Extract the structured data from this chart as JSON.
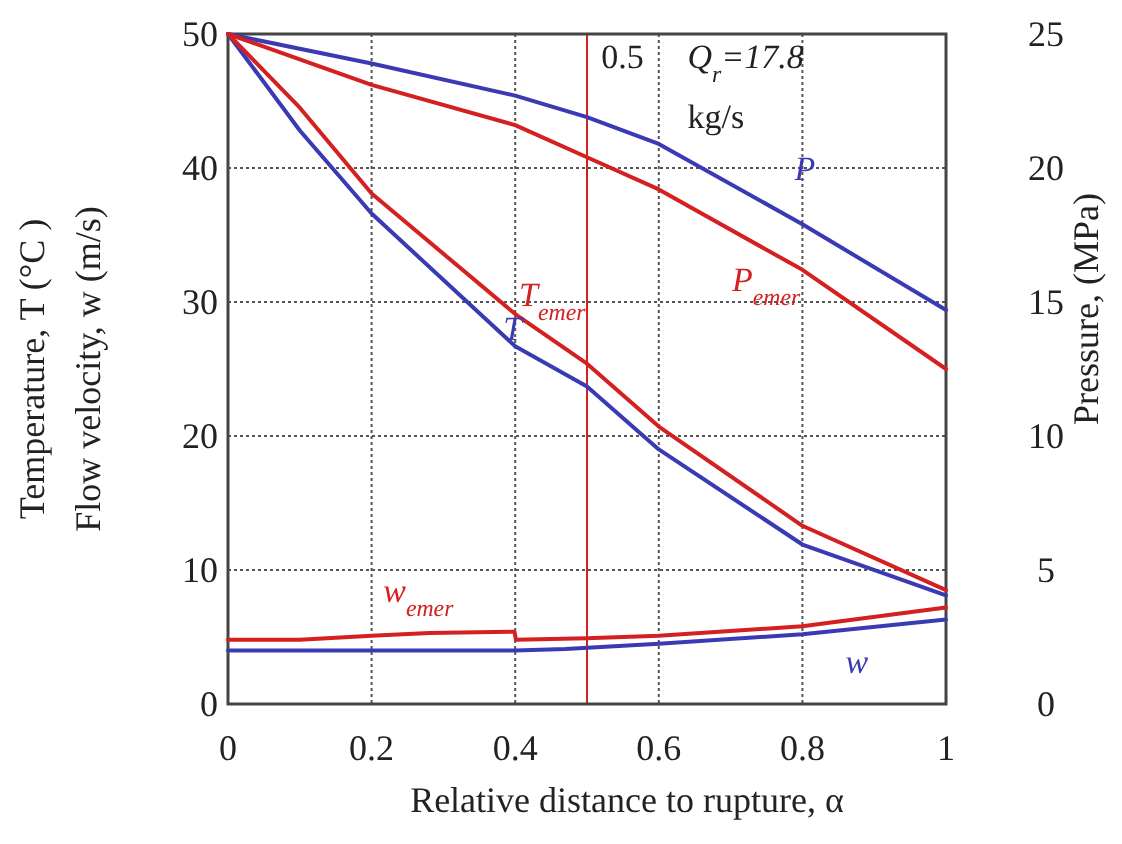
{
  "chart_data": {
    "type": "line",
    "xlabel": "Relative distance to rupture, α",
    "ylabel": "Temperature, T (°C )\nFlow velocity, w (m/s)",
    "y2label": "Pressure, (MPa)",
    "xlim": [
      0,
      1
    ],
    "xticks": [
      0,
      0.2,
      0.4,
      0.6,
      0.8,
      1
    ],
    "ylim": [
      0,
      50
    ],
    "yticks": [
      0,
      10,
      20,
      30,
      40,
      50
    ],
    "y2lim": [
      0,
      25
    ],
    "y2ticks": [
      0,
      5,
      10,
      15,
      20,
      25
    ],
    "grid": true,
    "line_style": "solid",
    "marker": "none",
    "series": [
      {
        "name": "P",
        "color": "#3a3ab4",
        "axis": "y2",
        "x": [
          0,
          0.2,
          0.4,
          0.5,
          0.6,
          0.8,
          1
        ],
        "values": [
          25,
          23.9,
          22.7,
          21.9,
          20.9,
          17.9,
          14.7
        ]
      },
      {
        "name": "P$_{emer}$",
        "color": "#d42020",
        "axis": "y2",
        "x": [
          0,
          0.2,
          0.4,
          0.5,
          0.6,
          0.8,
          1
        ],
        "values": [
          25,
          23.1,
          21.6,
          20.4,
          19.2,
          16.2,
          12.5
        ]
      },
      {
        "name": "T",
        "color": "#3a3ab4",
        "x": [
          0,
          0.1,
          0.2,
          0.4,
          0.5,
          0.6,
          0.8,
          1
        ],
        "values": [
          50,
          42.8,
          36.6,
          26.7,
          23.7,
          19,
          11.9,
          8.1
        ]
      },
      {
        "name": "T$_{emer}$",
        "color": "#d42020",
        "x": [
          0,
          0.1,
          0.2,
          0.4,
          0.5,
          0.6,
          0.8,
          1
        ],
        "values": [
          50,
          44.5,
          38.1,
          29.1,
          25.4,
          20.7,
          13.3,
          8.5
        ]
      },
      {
        "name": "w",
        "color": "#3a3ab4",
        "x": [
          0,
          0.2,
          0.4,
          0.47,
          0.6,
          0.8,
          1
        ],
        "values": [
          4,
          4,
          4,
          4.1,
          4.5,
          5.2,
          6.3
        ]
      },
      {
        "name": "w$_{emer}$",
        "color": "#d42020",
        "x": [
          0,
          0.1,
          0.2,
          0.28,
          0.399,
          0.401,
          0.5,
          0.6,
          0.8,
          1
        ],
        "values": [
          4.8,
          4.8,
          5.1,
          5.3,
          5.4,
          4.8,
          4.9,
          5.1,
          5.8,
          7.2
        ]
      }
    ],
    "ref_lines": [
      {
        "axis": "x",
        "value": 0.5,
        "color": "#d42020"
      }
    ],
    "annotations": [
      "0.5",
      "Q$_{r}$=17.8",
      "kg/s"
    ]
  }
}
